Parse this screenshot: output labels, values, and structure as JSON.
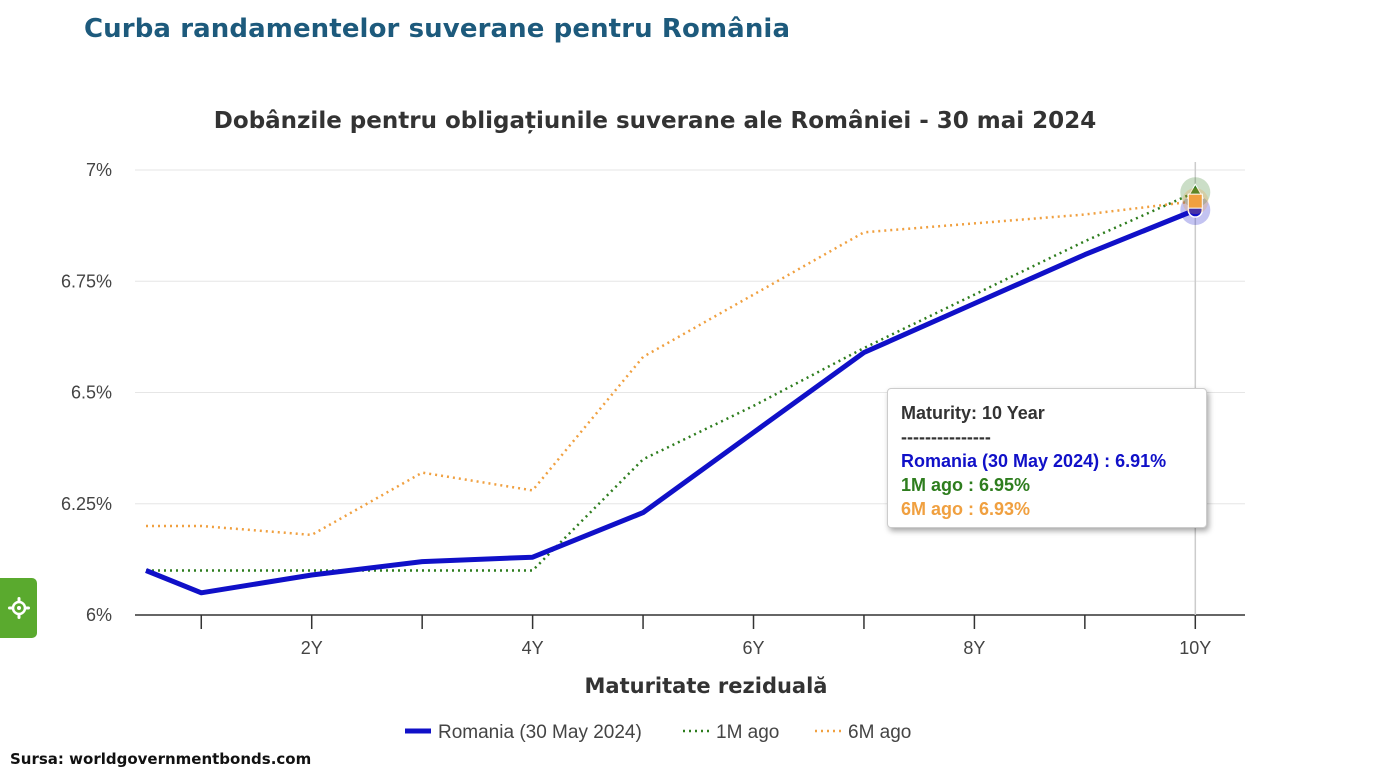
{
  "page": {
    "title": "Curba randamentelor suverane pentru România",
    "source": "Sursa: worldgovernmentbonds.com"
  },
  "colors": {
    "romania": "#1010c8",
    "one_month": "#2e7d1e",
    "six_month": "#f0a040",
    "title": "#1d5a7c",
    "settings_tab": "#5aaa2e"
  },
  "settings_tab": {
    "icon": "gear-icon"
  },
  "chart_data": {
    "type": "line",
    "title": "Dobânzile pentru obligațiunile suverane ale României - 30 mai 2024",
    "xlabel": "Maturitate reziduală",
    "ylabel": "",
    "x": [
      0.5,
      1,
      2,
      3,
      4,
      5,
      6,
      7,
      8,
      9,
      10
    ],
    "x_ticks": [
      2,
      4,
      6,
      8,
      10
    ],
    "x_tick_labels": [
      "2Y",
      "4Y",
      "6Y",
      "8Y",
      "10Y"
    ],
    "x_minor_ticks": [
      1,
      3,
      5,
      7,
      9
    ],
    "xlim": [
      0.4,
      10.45
    ],
    "y_ticks": [
      6,
      6.25,
      6.5,
      6.75,
      7
    ],
    "y_tick_labels": [
      "6%",
      "6.25%",
      "6.5%",
      "6.75%",
      "7%"
    ],
    "ylim": [
      6,
      7
    ],
    "grid": true,
    "legend_position": "bottom",
    "series": [
      {
        "name": "Romania (30 May 2024)",
        "style": "solid",
        "values": [
          6.1,
          6.05,
          6.09,
          6.12,
          6.13,
          6.23,
          6.41,
          6.59,
          6.7,
          6.81,
          6.91
        ]
      },
      {
        "name": "1M ago",
        "style": "dotted",
        "values": [
          6.1,
          6.1,
          6.1,
          6.1,
          6.1,
          6.35,
          6.47,
          6.6,
          6.72,
          6.84,
          6.95
        ]
      },
      {
        "name": "6M ago",
        "style": "dotted",
        "values": [
          6.2,
          6.2,
          6.18,
          6.32,
          6.28,
          6.58,
          6.72,
          6.86,
          6.88,
          6.9,
          6.93
        ]
      }
    ],
    "tooltip": {
      "title": "Maturity: 10 Year",
      "separator": "---------------",
      "lines": [
        "Romania (30 May 2024) : 6.91%",
        "1M ago : 6.95%",
        "6M ago : 6.93%"
      ]
    }
  }
}
